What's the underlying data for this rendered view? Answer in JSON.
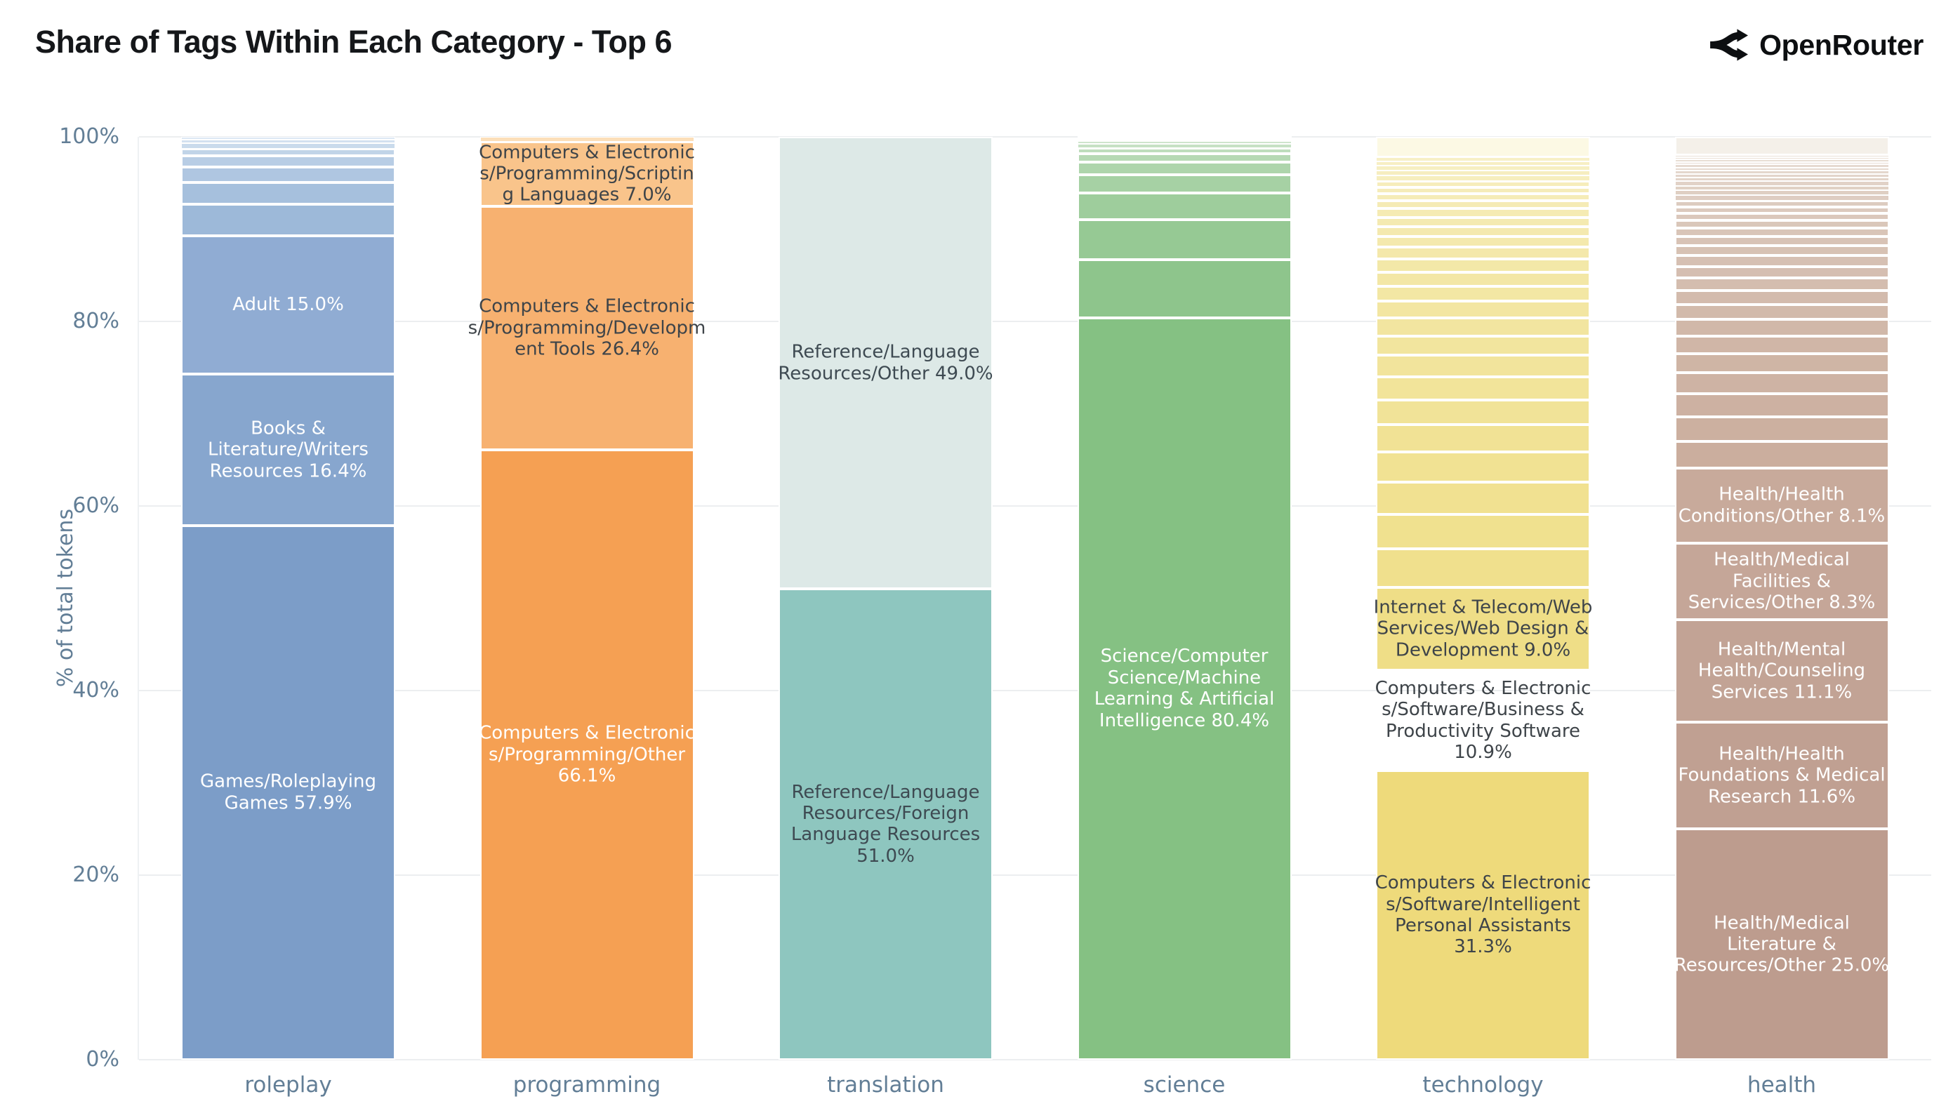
{
  "header": {
    "title": "Share of Tags Within Each Category - Top 6",
    "brand": "OpenRouter"
  },
  "colors": {
    "background": "#ffffff",
    "title_text": "#15171a",
    "brand_text": "#0d0f11",
    "axis_text": "#627e96",
    "gridline": "#eceef0",
    "segment_border": "#ffffff",
    "dark_label_text": "#3e4449",
    "light_label_text": "#ffffff"
  },
  "chart_data": {
    "type": "bar",
    "stacked": true,
    "title": "Share of Tags Within Each Category - Top 6",
    "xlabel": "",
    "ylabel": "% of total tokens",
    "ylim": [
      0,
      100
    ],
    "ytick_step": 20,
    "ytick_labels": [
      "0%",
      "20%",
      "40%",
      "60%",
      "80%",
      "100%"
    ],
    "grid": true,
    "legend": false,
    "categories": [
      "roleplay",
      "programming",
      "translation",
      "science",
      "technology",
      "health"
    ],
    "bars": [
      {
        "category": "roleplay",
        "segments": [
          {
            "label": "Games/Roleplaying\nGames 57.9%",
            "value": 57.9,
            "color": "#7c9dc8",
            "text_color": "#ffffff"
          },
          {
            "label": "Books &\nLiterature/Writers\nResources 16.4%",
            "value": 16.4,
            "color": "#87a6ce",
            "text_color": "#ffffff"
          },
          {
            "label": "Adult 15.0%",
            "value": 15.0,
            "color": "#90acd3",
            "text_color": "#ffffff"
          }
        ],
        "filler": {
          "total": 10.7,
          "count": 8,
          "ratio": 0.7,
          "color_from": "#9db9d9",
          "color_to": "#dce8f4"
        }
      },
      {
        "category": "programming",
        "segments": [
          {
            "label": "Computers & Electronic\ns/Programming/Other\n66.1%",
            "value": 66.1,
            "color": "#f5a053",
            "text_color": "#ffffff"
          },
          {
            "label": "Computers & Electronic\ns/Programming/Developm\nent Tools 26.4%",
            "value": 26.4,
            "color": "#f7b170",
            "text_color": "#3e4449"
          },
          {
            "label": "Computers & Electronic\ns/Programming/Scriptin\ng Languages 7.0%",
            "value": 7.0,
            "color": "#f9c48b",
            "text_color": "#3e4449"
          },
          {
            "label": "",
            "value": 0.5,
            "color": "#fcdfb9",
            "text_color": "#3e4449"
          }
        ]
      },
      {
        "category": "translation",
        "segments": [
          {
            "label": "Reference/Language\nResources/Foreign\nLanguage Resources\n51.0%",
            "value": 51.0,
            "color": "#8ec6bf",
            "text_color": "#3e4a52"
          },
          {
            "label": "Reference/Language\nResources/Other 49.0%",
            "value": 49.0,
            "color": "#dde9e7",
            "text_color": "#3e4a52"
          }
        ]
      },
      {
        "category": "science",
        "segments": [
          {
            "label": "Science/Computer\nScience/Machine\nLearning & Artificial\nIntelligence 80.4%",
            "value": 80.4,
            "color": "#85c183",
            "text_color": "#ffffff"
          }
        ],
        "filler": {
          "total": 19.6,
          "count": 13,
          "ratio": 0.68,
          "color_from": "#8ec58c",
          "color_to": "#eef5ec"
        }
      },
      {
        "category": "technology",
        "segments": [
          {
            "label": "Computers & Electronic\ns/Software/Intelligent\nPersonal Assistants\n31.3%",
            "value": 31.3,
            "color": "#eeda7b",
            "text_color": "#3e4449"
          },
          {
            "label": "Computers & Electronic\ns/Software/Business &\nProductivity Software\n10.9%",
            "value": 10.9,
            "color": "#eedc81, ",
            "text_color": "#3e4449"
          },
          {
            "label": "Internet & Telecom/Web\nServices/Web Design &\nDevelopment 9.0%",
            "value": 9.0,
            "color": "#efde87",
            "text_color": "#3e4449"
          }
        ],
        "filler": {
          "total": 46.6,
          "count": 28,
          "ratio": 0.92,
          "color_from": "#f0e08d",
          "color_to": "#f7f0c6"
        },
        "top_segment": {
          "label": "",
          "value": 2.2,
          "color": "#fcf9e4"
        }
      },
      {
        "category": "health",
        "segments": [
          {
            "label": "Health/Medical\nLiterature &\nResources/Other 25.0%",
            "value": 25.0,
            "color": "#bd9c8e",
            "text_color": "#ffffff"
          },
          {
            "label": "Health/Health\nFoundations & Medical\nResearch 11.6%",
            "value": 11.6,
            "color": "#c0a092",
            "text_color": "#ffffff"
          },
          {
            "label": "Health/Mental\nHealth/Counseling\nServices 11.1%",
            "value": 11.1,
            "color": "#c2a395",
            "text_color": "#ffffff"
          },
          {
            "label": "Health/Medical\nFacilities &\nServices/Other 8.3%",
            "value": 8.3,
            "color": "#c5a698",
            "text_color": "#ffffff"
          },
          {
            "label": "Health/Health\nConditions/Other 8.1%",
            "value": 8.1,
            "color": "#c8aa9b",
            "text_color": "#ffffff"
          }
        ],
        "filler": {
          "total": 33.9,
          "count": 32,
          "ratio": 0.92,
          "color_from": "#cbae9e",
          "color_to": "#eae1d8"
        },
        "top_segment": {
          "label": "",
          "value": 2.0,
          "color": "#f4f0e9"
        }
      }
    ]
  }
}
